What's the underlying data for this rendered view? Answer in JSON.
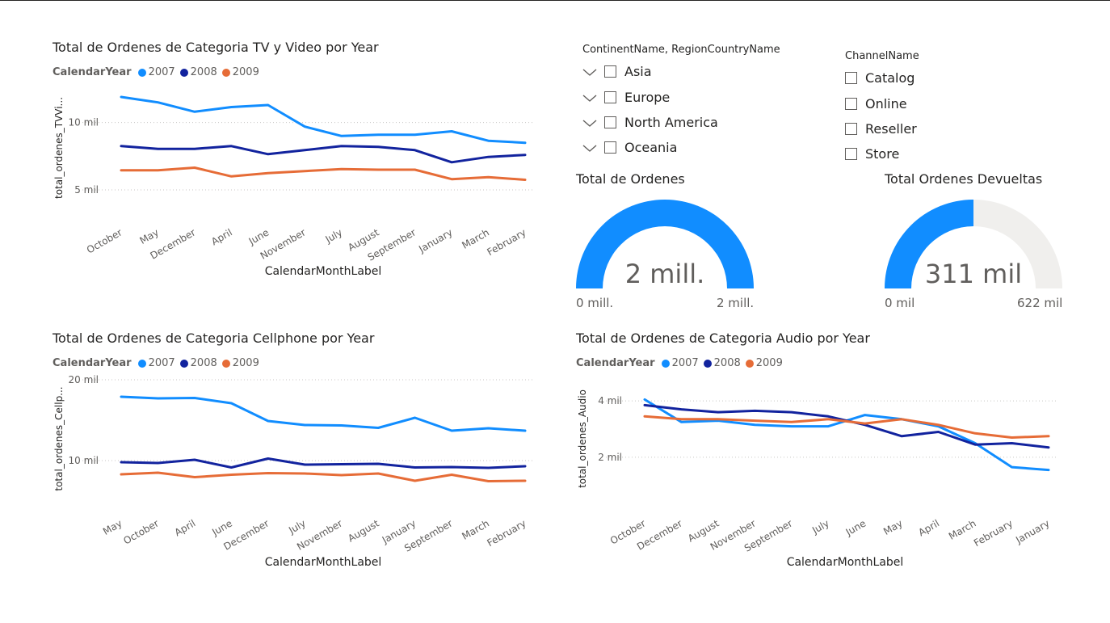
{
  "colors": {
    "y2007": "#118DFF",
    "y2008": "#12239E",
    "y2009": "#E66C37",
    "gauge_fill": "#118DFF",
    "gauge_bg": "#F0EFED"
  },
  "legend": {
    "title": "CalendarYear",
    "items": [
      "2007",
      "2008",
      "2009"
    ]
  },
  "slicer_region": {
    "title": "ContinentName, RegionCountryName",
    "items": [
      "Asia",
      "Europe",
      "North America",
      "Oceania"
    ]
  },
  "slicer_channel": {
    "title": "ChannelName",
    "items": [
      "Catalog",
      "Online",
      "Reseller",
      "Store"
    ]
  },
  "gauge_total": {
    "title": "Total de Ordenes",
    "value_label": "2 mill.",
    "min_label": "0 mill.",
    "max_label": "2 mill.",
    "fraction": 1.0
  },
  "gauge_returns": {
    "title": "Total Ordenes Devueltas",
    "value_label": "311 mil",
    "min_label": "0 mil",
    "max_label": "622 mil",
    "fraction": 0.5
  },
  "chart_data": [
    {
      "id": "tv",
      "type": "line",
      "title": "Total de Ordenes de Categoria TV y Video por Year",
      "xlabel": "CalendarMonthLabel",
      "ylabel": "total_ordenes_TVVi...",
      "categories": [
        "October",
        "May",
        "December",
        "April",
        "June",
        "November",
        "July",
        "August",
        "September",
        "January",
        "March",
        "February"
      ],
      "yticks": [
        {
          "v": 10000,
          "label": "10 mil"
        },
        {
          "v": 5000,
          "label": "5 mil"
        }
      ],
      "ylim": [
        3500,
        12500
      ],
      "series": [
        {
          "name": "2007",
          "values": [
            11900,
            11500,
            10800,
            11150,
            11300,
            9700,
            9000,
            9100,
            9100,
            9350,
            8650,
            8500
          ]
        },
        {
          "name": "2008",
          "values": [
            8250,
            8050,
            8050,
            8250,
            7650,
            7950,
            8250,
            8200,
            7950,
            7050,
            7450,
            7600
          ]
        },
        {
          "name": "2009",
          "values": [
            6450,
            6450,
            6650,
            6000,
            6250,
            6400,
            6550,
            6500,
            6500,
            5800,
            5950,
            5750
          ]
        }
      ]
    },
    {
      "id": "cell",
      "type": "line",
      "title": "Total de Ordenes de Categoria Cellphone por Year",
      "xlabel": "CalendarMonthLabel",
      "ylabel": "total_ordenes_Cellp...",
      "categories": [
        "May",
        "October",
        "April",
        "June",
        "December",
        "July",
        "November",
        "August",
        "January",
        "September",
        "March",
        "February"
      ],
      "yticks": [
        {
          "v": 20000,
          "label": "20 mil"
        },
        {
          "v": 10000,
          "label": "10 mil"
        }
      ],
      "ylim": [
        5000,
        20000
      ],
      "series": [
        {
          "name": "2007",
          "values": [
            17900,
            17700,
            17750,
            17100,
            14900,
            14400,
            14350,
            14050,
            15300,
            13700,
            14000,
            13700
          ]
        },
        {
          "name": "2008",
          "values": [
            9800,
            9700,
            10100,
            9150,
            10250,
            9500,
            9550,
            9600,
            9150,
            9200,
            9100,
            9300
          ]
        },
        {
          "name": "2009",
          "values": [
            8300,
            8500,
            7950,
            8250,
            8450,
            8400,
            8200,
            8400,
            7500,
            8250,
            7450,
            7500
          ]
        }
      ]
    },
    {
      "id": "audio",
      "type": "line",
      "title": "Total de Ordenes de Categoria Audio por Year",
      "xlabel": "CalendarMonthLabel",
      "ylabel": "total_ordenes_Audio",
      "categories": [
        "October",
        "December",
        "August",
        "November",
        "September",
        "July",
        "June",
        "May",
        "April",
        "March",
        "February",
        "January"
      ],
      "yticks": [
        {
          "v": 4000,
          "label": "4 mil"
        },
        {
          "v": 2000,
          "label": "2 mil"
        }
      ],
      "ylim": [
        450,
        4750
      ],
      "series": [
        {
          "name": "2007",
          "values": [
            4050,
            3250,
            3300,
            3150,
            3100,
            3100,
            3500,
            3350,
            3100,
            2500,
            1650,
            1550
          ]
        },
        {
          "name": "2008",
          "values": [
            3850,
            3700,
            3600,
            3650,
            3600,
            3450,
            3150,
            2750,
            2900,
            2450,
            2500,
            2350
          ]
        },
        {
          "name": "2009",
          "values": [
            3450,
            3350,
            3350,
            3300,
            3250,
            3350,
            3200,
            3350,
            3150,
            2850,
            2700,
            2750
          ]
        }
      ]
    }
  ]
}
